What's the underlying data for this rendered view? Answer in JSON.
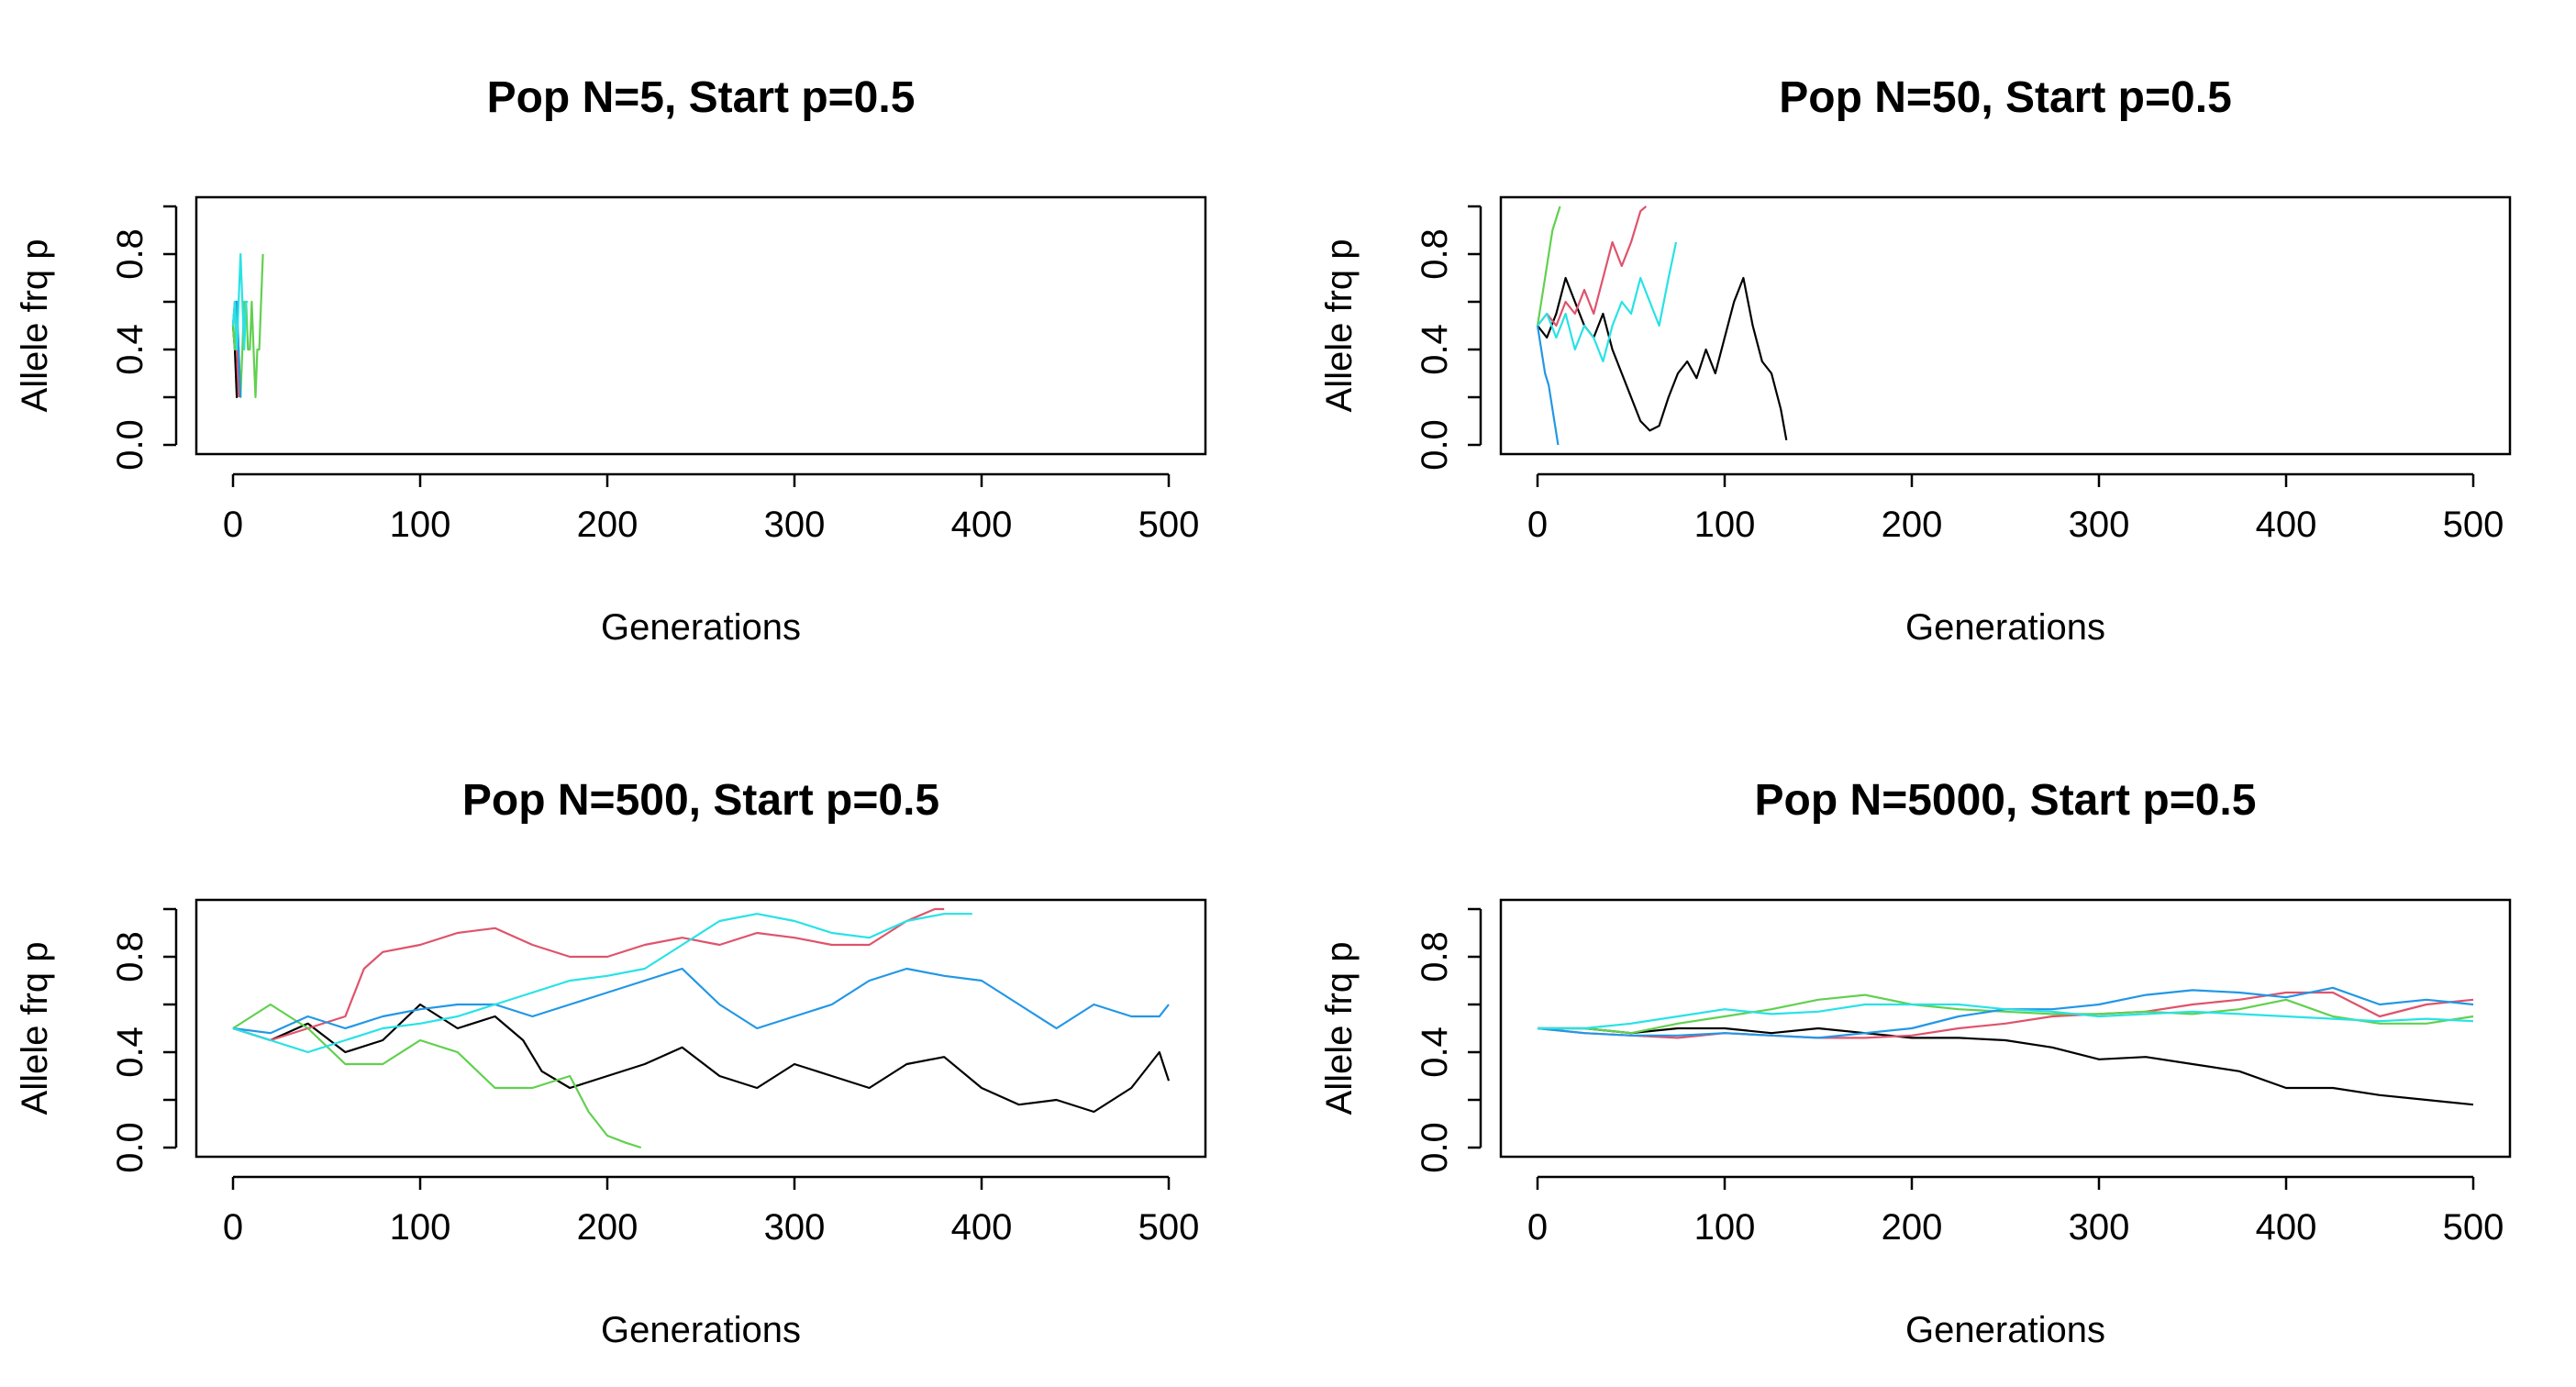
{
  "chart_data": [
    {
      "type": "line",
      "title": "Pop N=5, Start p=0.5",
      "xlabel": "Generations",
      "ylabel": "Allele frq p",
      "xlim": [
        0,
        500
      ],
      "ylim": [
        0,
        1
      ],
      "xticks": [
        "0",
        "100",
        "200",
        "300",
        "400",
        "500"
      ],
      "yticks": [
        "0.0",
        "0.4",
        "0.8"
      ],
      "grid": false,
      "series": [
        {
          "color": "#000000",
          "x": [
            0,
            1,
            2,
            3
          ],
          "y": [
            0.5,
            0.4,
            0.2,
            0.4
          ]
        },
        {
          "color": "#DF536B",
          "x": [
            0,
            1,
            2,
            3
          ],
          "y": [
            0.5,
            0.6,
            0.4,
            0.2
          ]
        },
        {
          "color": "#61D04F",
          "x": [
            0,
            1,
            2,
            3,
            4,
            5,
            6,
            7,
            8,
            9,
            10,
            11,
            12,
            13,
            14,
            15,
            16
          ],
          "y": [
            0.5,
            0.4,
            0.6,
            0.4,
            0.2,
            0.4,
            0.6,
            0.6,
            0.4,
            0.4,
            0.6,
            0.4,
            0.2,
            0.4,
            0.4,
            0.6,
            0.8
          ]
        },
        {
          "color": "#2297E6",
          "x": [
            0,
            1,
            2,
            3,
            4
          ],
          "y": [
            0.5,
            0.6,
            0.6,
            0.4,
            0.2
          ]
        },
        {
          "color": "#28E2E5",
          "x": [
            0,
            1,
            2,
            3,
            4,
            5,
            6,
            7,
            8
          ],
          "y": [
            0.5,
            0.6,
            0.4,
            0.6,
            0.8,
            0.6,
            0.4,
            0.6,
            0.6
          ]
        }
      ]
    },
    {
      "type": "line",
      "title": "Pop N=50, Start p=0.5",
      "xlabel": "Generations",
      "ylabel": "Allele frq p",
      "xlim": [
        0,
        500
      ],
      "ylim": [
        0,
        1
      ],
      "xticks": [
        "0",
        "100",
        "200",
        "300",
        "400",
        "500"
      ],
      "yticks": [
        "0.0",
        "0.4",
        "0.8"
      ],
      "grid": false,
      "series": [
        {
          "color": "#000000",
          "x": [
            0,
            5,
            10,
            15,
            20,
            25,
            30,
            35,
            40,
            45,
            50,
            55,
            60,
            65,
            70,
            75,
            80,
            85,
            90,
            95,
            100,
            105,
            110,
            115,
            120,
            125,
            130,
            133
          ],
          "y": [
            0.5,
            0.45,
            0.55,
            0.7,
            0.6,
            0.5,
            0.45,
            0.55,
            0.4,
            0.3,
            0.2,
            0.1,
            0.06,
            0.08,
            0.2,
            0.3,
            0.35,
            0.28,
            0.4,
            0.3,
            0.45,
            0.6,
            0.7,
            0.5,
            0.35,
            0.3,
            0.15,
            0.02
          ]
        },
        {
          "color": "#DF536B",
          "x": [
            0,
            5,
            10,
            15,
            20,
            25,
            30,
            35,
            40,
            45,
            50,
            55,
            58
          ],
          "y": [
            0.5,
            0.55,
            0.5,
            0.6,
            0.55,
            0.65,
            0.55,
            0.7,
            0.85,
            0.75,
            0.85,
            0.98,
            1.0
          ]
        },
        {
          "color": "#61D04F",
          "x": [
            0,
            2,
            4,
            6,
            8,
            10,
            12
          ],
          "y": [
            0.5,
            0.6,
            0.7,
            0.8,
            0.9,
            0.95,
            1.0
          ]
        },
        {
          "color": "#2297E6",
          "x": [
            0,
            2,
            4,
            6,
            8,
            10,
            11
          ],
          "y": [
            0.5,
            0.4,
            0.3,
            0.25,
            0.15,
            0.05,
            0.0
          ]
        },
        {
          "color": "#28E2E5",
          "x": [
            0,
            5,
            10,
            15,
            20,
            25,
            30,
            35,
            40,
            45,
            50,
            55,
            60,
            65,
            70,
            74
          ],
          "y": [
            0.5,
            0.55,
            0.45,
            0.55,
            0.4,
            0.5,
            0.45,
            0.35,
            0.5,
            0.6,
            0.55,
            0.7,
            0.6,
            0.5,
            0.7,
            0.85
          ]
        }
      ]
    },
    {
      "type": "line",
      "title": "Pop N=500, Start p=0.5",
      "xlabel": "Generations",
      "ylabel": "Allele frq p",
      "xlim": [
        0,
        500
      ],
      "ylim": [
        0,
        1
      ],
      "xticks": [
        "0",
        "100",
        "200",
        "300",
        "400",
        "500"
      ],
      "yticks": [
        "0.0",
        "0.4",
        "0.8"
      ],
      "grid": false,
      "series": [
        {
          "color": "#000000",
          "x": [
            0,
            20,
            40,
            60,
            80,
            100,
            120,
            140,
            155,
            165,
            180,
            200,
            220,
            240,
            260,
            280,
            300,
            320,
            340,
            360,
            380,
            400,
            420,
            440,
            460,
            480,
            495,
            500
          ],
          "y": [
            0.5,
            0.45,
            0.52,
            0.4,
            0.45,
            0.6,
            0.5,
            0.55,
            0.45,
            0.32,
            0.25,
            0.3,
            0.35,
            0.42,
            0.3,
            0.25,
            0.35,
            0.3,
            0.25,
            0.35,
            0.38,
            0.25,
            0.18,
            0.2,
            0.15,
            0.25,
            0.4,
            0.28
          ]
        },
        {
          "color": "#DF536B",
          "x": [
            0,
            20,
            40,
            60,
            70,
            80,
            100,
            120,
            140,
            160,
            180,
            200,
            220,
            240,
            260,
            280,
            300,
            320,
            340,
            350,
            360,
            375,
            380
          ],
          "y": [
            0.5,
            0.45,
            0.5,
            0.55,
            0.75,
            0.82,
            0.85,
            0.9,
            0.92,
            0.85,
            0.8,
            0.8,
            0.85,
            0.88,
            0.85,
            0.9,
            0.88,
            0.85,
            0.85,
            0.9,
            0.95,
            1.0,
            1.0
          ]
        },
        {
          "color": "#61D04F",
          "x": [
            0,
            10,
            20,
            40,
            60,
            80,
            100,
            120,
            140,
            160,
            180,
            190,
            200,
            210,
            218
          ],
          "y": [
            0.5,
            0.55,
            0.6,
            0.5,
            0.35,
            0.35,
            0.45,
            0.4,
            0.25,
            0.25,
            0.3,
            0.15,
            0.05,
            0.02,
            0.0
          ]
        },
        {
          "color": "#2297E6",
          "x": [
            0,
            20,
            40,
            60,
            80,
            100,
            120,
            140,
            160,
            180,
            200,
            220,
            240,
            260,
            280,
            300,
            320,
            340,
            360,
            380,
            400,
            420,
            440,
            460,
            480,
            495,
            500
          ],
          "y": [
            0.5,
            0.48,
            0.55,
            0.5,
            0.55,
            0.58,
            0.6,
            0.6,
            0.55,
            0.6,
            0.65,
            0.7,
            0.75,
            0.6,
            0.5,
            0.55,
            0.6,
            0.7,
            0.75,
            0.72,
            0.7,
            0.6,
            0.5,
            0.6,
            0.55,
            0.55,
            0.6
          ]
        },
        {
          "color": "#28E2E5",
          "x": [
            0,
            20,
            40,
            60,
            80,
            100,
            120,
            140,
            160,
            180,
            200,
            220,
            240,
            260,
            280,
            300,
            320,
            340,
            360,
            380,
            395
          ],
          "y": [
            0.5,
            0.45,
            0.4,
            0.45,
            0.5,
            0.52,
            0.55,
            0.6,
            0.65,
            0.7,
            0.72,
            0.75,
            0.85,
            0.95,
            0.98,
            0.95,
            0.9,
            0.88,
            0.95,
            0.98,
            0.98
          ]
        }
      ]
    },
    {
      "type": "line",
      "title": "Pop N=5000, Start p=0.5",
      "xlabel": "Generations",
      "ylabel": "Allele frq p",
      "xlim": [
        0,
        500
      ],
      "ylim": [
        0,
        1
      ],
      "xticks": [
        "0",
        "100",
        "200",
        "300",
        "400",
        "500"
      ],
      "yticks": [
        "0.0",
        "0.4",
        "0.8"
      ],
      "grid": false,
      "series": [
        {
          "color": "#000000",
          "x": [
            0,
            25,
            50,
            75,
            100,
            125,
            150,
            175,
            200,
            225,
            250,
            275,
            300,
            325,
            350,
            375,
            400,
            425,
            450,
            475,
            500
          ],
          "y": [
            0.5,
            0.5,
            0.48,
            0.5,
            0.5,
            0.48,
            0.5,
            0.48,
            0.46,
            0.46,
            0.45,
            0.42,
            0.37,
            0.38,
            0.35,
            0.32,
            0.25,
            0.25,
            0.22,
            0.2,
            0.18
          ]
        },
        {
          "color": "#DF536B",
          "x": [
            0,
            25,
            50,
            75,
            100,
            125,
            150,
            175,
            200,
            225,
            250,
            275,
            300,
            325,
            350,
            375,
            400,
            425,
            450,
            475,
            500
          ],
          "y": [
            0.5,
            0.48,
            0.47,
            0.46,
            0.48,
            0.47,
            0.46,
            0.46,
            0.47,
            0.5,
            0.52,
            0.55,
            0.56,
            0.57,
            0.6,
            0.62,
            0.65,
            0.65,
            0.55,
            0.6,
            0.62
          ]
        },
        {
          "color": "#61D04F",
          "x": [
            0,
            25,
            50,
            75,
            100,
            125,
            150,
            175,
            200,
            225,
            250,
            275,
            300,
            325,
            350,
            375,
            400,
            425,
            450,
            475,
            500
          ],
          "y": [
            0.5,
            0.5,
            0.48,
            0.52,
            0.55,
            0.58,
            0.62,
            0.64,
            0.6,
            0.58,
            0.57,
            0.56,
            0.56,
            0.57,
            0.56,
            0.58,
            0.62,
            0.55,
            0.52,
            0.52,
            0.55
          ]
        },
        {
          "color": "#2297E6",
          "x": [
            0,
            25,
            50,
            75,
            100,
            125,
            150,
            175,
            200,
            225,
            250,
            275,
            300,
            325,
            350,
            375,
            400,
            425,
            450,
            475,
            500
          ],
          "y": [
            0.5,
            0.48,
            0.47,
            0.47,
            0.48,
            0.47,
            0.46,
            0.48,
            0.5,
            0.55,
            0.58,
            0.58,
            0.6,
            0.64,
            0.66,
            0.65,
            0.63,
            0.67,
            0.6,
            0.62,
            0.6
          ]
        },
        {
          "color": "#28E2E5",
          "x": [
            0,
            25,
            50,
            75,
            100,
            125,
            150,
            175,
            200,
            225,
            250,
            275,
            300,
            325,
            350,
            375,
            400,
            425,
            450,
            475,
            500
          ],
          "y": [
            0.5,
            0.5,
            0.52,
            0.55,
            0.58,
            0.56,
            0.57,
            0.6,
            0.6,
            0.6,
            0.58,
            0.57,
            0.55,
            0.56,
            0.57,
            0.56,
            0.55,
            0.54,
            0.53,
            0.54,
            0.53
          ]
        }
      ]
    }
  ]
}
